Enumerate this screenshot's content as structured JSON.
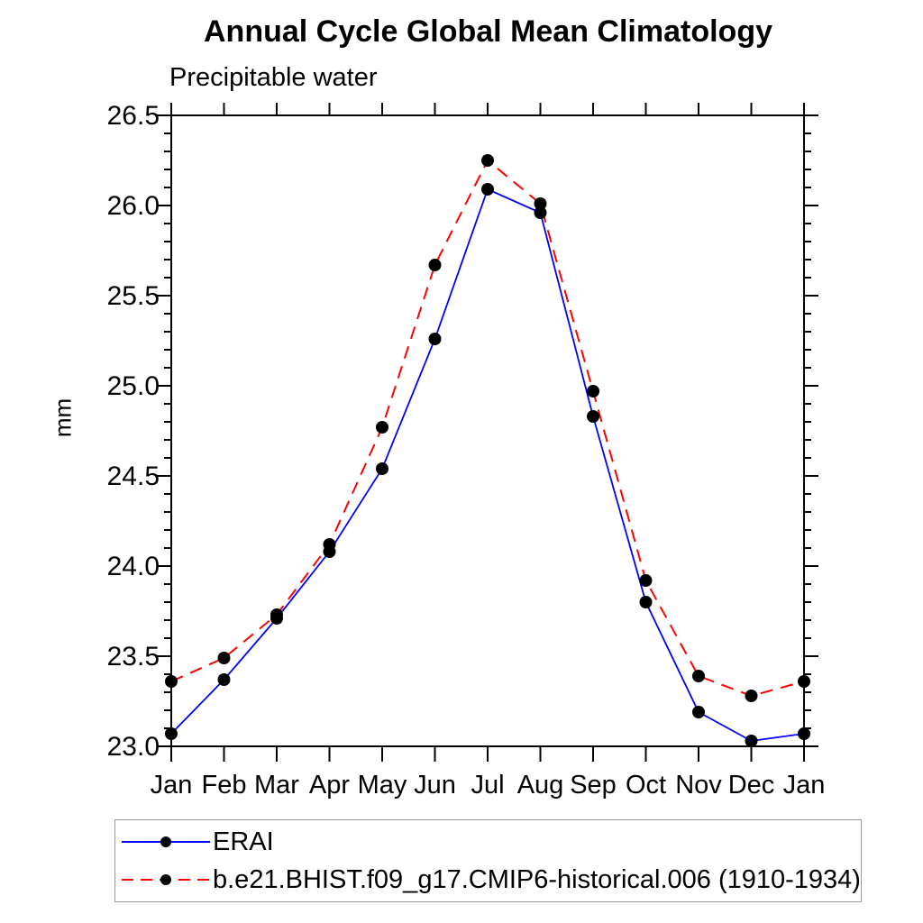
{
  "title": "Annual Cycle Global Mean Climatology",
  "subtitle": "Precipitable water",
  "ylabel": "mm",
  "colors": {
    "erai_line": "#0000ff",
    "model_line": "#ff0000",
    "marker": "#000000",
    "axis": "#000000",
    "legend_border": "#9a9a9a"
  },
  "legend": {
    "position": "bottom",
    "entries": [
      {
        "label": "ERAI"
      },
      {
        "label": "b.e21.BHIST.f09_g17.CMIP6-historical.006 (1910-1934)"
      }
    ]
  },
  "chart_data": {
    "type": "line",
    "title": "Annual Cycle Global Mean Climatology",
    "subtitle": "Precipitable water",
    "xlabel": "",
    "ylabel": "mm",
    "categories": [
      "Jan",
      "Feb",
      "Mar",
      "Apr",
      "May",
      "Jun",
      "Jul",
      "Aug",
      "Sep",
      "Oct",
      "Nov",
      "Dec",
      "Jan"
    ],
    "series": [
      {
        "name": "ERAI",
        "color": "#0000ff",
        "line_style": "solid",
        "marker": "filled-circle",
        "marker_color": "#000000",
        "values": [
          23.07,
          23.37,
          23.71,
          24.08,
          24.54,
          25.26,
          26.09,
          25.96,
          24.83,
          23.8,
          23.19,
          23.03,
          23.07
        ]
      },
      {
        "name": "b.e21.BHIST.f09_g17.CMIP6-historical.006 (1910-1934)",
        "color": "#ff0000",
        "line_style": "dashed",
        "marker": "filled-circle",
        "marker_color": "#000000",
        "values": [
          23.36,
          23.49,
          23.73,
          24.12,
          24.77,
          25.67,
          26.25,
          26.01,
          24.97,
          23.92,
          23.39,
          23.28,
          23.36
        ]
      }
    ],
    "ylim": [
      23.0,
      26.5
    ],
    "y_major_step": 0.5,
    "y_minor_step": 0.1,
    "y_tick_format": "one-decimal",
    "grid": false,
    "legend_position": "bottom-outside"
  }
}
